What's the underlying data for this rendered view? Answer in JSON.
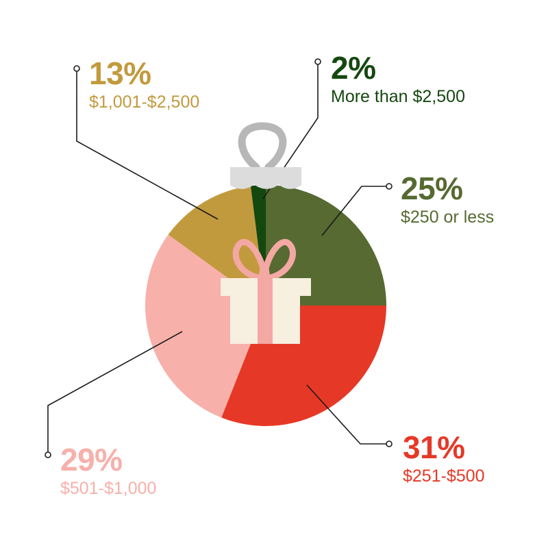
{
  "chart_data": {
    "type": "pie",
    "slices": [
      {
        "label": "$250 or less",
        "value": 25,
        "value_label": "25%",
        "color": "#566a31"
      },
      {
        "label": "$251-$500",
        "value": 31,
        "value_label": "31%",
        "color": "#e63827"
      },
      {
        "label": "$501-$1,000",
        "value": 29,
        "value_label": "29%",
        "color": "#f7b0aa"
      },
      {
        "label": "$1,001-$2,500",
        "value": 13,
        "value_label": "13%",
        "color": "#c29a3e"
      },
      {
        "label": "More than $2,500",
        "value": 2,
        "value_label": "2%",
        "color": "#14480f"
      }
    ]
  },
  "colors": {
    "ornament_cap": "#dcdcdc",
    "ornament_hook": "#b7b7b7",
    "gift_box": "#f7efe0",
    "gift_ribbon": "#f3a8a3",
    "leader_line": "#1a1a1a"
  },
  "icons": [
    "ornament-hook-icon",
    "ornament-cap-icon",
    "gift-icon"
  ]
}
